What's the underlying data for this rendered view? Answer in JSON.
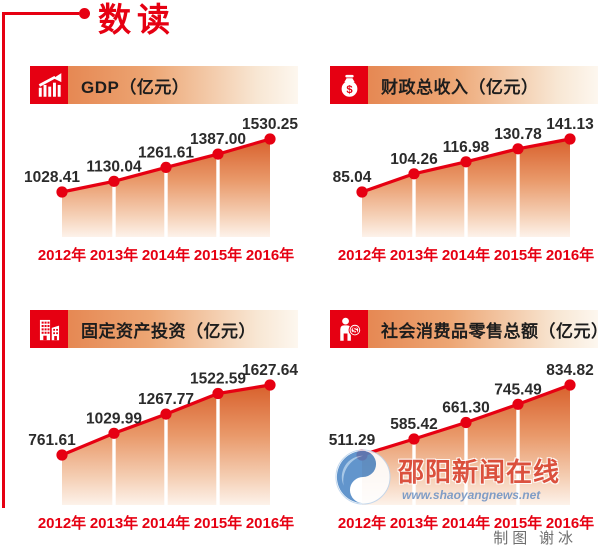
{
  "page_title": "数读",
  "credit": "制图  谢冰",
  "watermark": {
    "site_name": "邵阳新闻在线",
    "site_url": "www.shaoyangnews.net",
    "logo": "shaoyang-news-swirl-logo"
  },
  "colors": {
    "accent_red": "#e60012",
    "value_label": "#2b2b2b",
    "area_gradient_top": "#d8602c",
    "area_gradient_mid": "#e9996a",
    "area_gradient_bottom": "#fdf2ea",
    "header_gradient_start": "#e27a44",
    "header_gradient_end": "#fdf7ef",
    "watermark_red": "#d8402e",
    "watermark_blue": "#6f93c4"
  },
  "years": [
    "2012年",
    "2013年",
    "2014年",
    "2015年",
    "2016年"
  ],
  "chart_data": [
    {
      "type": "area",
      "title": "GDP（亿元）",
      "icon": "trend-chart-icon",
      "legend_position": "none",
      "grid": false,
      "categories": [
        "2012年",
        "2013年",
        "2014年",
        "2015年",
        "2016年"
      ],
      "values": [
        1028.41,
        1130.04,
        1261.61,
        1387.0,
        1530.25
      ],
      "value_labels": [
        "1028.41",
        "1130.04",
        "1261.61",
        "1387.00",
        "1530.25"
      ]
    },
    {
      "type": "area",
      "title": "财政总收入（亿元）",
      "icon": "money-bag-icon",
      "legend_position": "none",
      "grid": false,
      "categories": [
        "2012年",
        "2013年",
        "2014年",
        "2015年",
        "2016年"
      ],
      "values": [
        85.04,
        104.26,
        116.98,
        130.78,
        141.13
      ],
      "value_labels": [
        "85.04",
        "104.26",
        "116.98",
        "130.78",
        "141.13"
      ]
    },
    {
      "type": "area",
      "title": "固定资产投资（亿元）",
      "icon": "buildings-icon",
      "legend_position": "none",
      "grid": false,
      "categories": [
        "2012年",
        "2013年",
        "2014年",
        "2015年",
        "2016年"
      ],
      "values": [
        761.61,
        1029.99,
        1267.77,
        1522.59,
        1627.64
      ],
      "value_labels": [
        "761.61",
        "1029.99",
        "1267.77",
        "1522.59",
        "1627.64"
      ]
    },
    {
      "type": "area",
      "title": "社会消费品零售总额（亿元）",
      "icon": "consumer-icon",
      "legend_position": "none",
      "grid": false,
      "categories": [
        "2012年",
        "2013年",
        "2014年",
        "2015年",
        "2016年"
      ],
      "values": [
        511.29,
        585.42,
        661.3,
        745.49,
        834.82
      ],
      "value_labels": [
        "511.29",
        "585.42",
        "661.30",
        "745.49",
        "834.82"
      ]
    }
  ]
}
